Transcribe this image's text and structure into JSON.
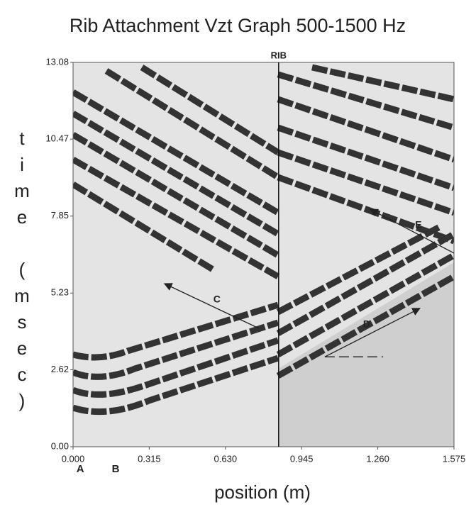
{
  "chart_data": {
    "type": "vzt",
    "title": "Rib Attachment Vzt Graph 500-1500 Hz",
    "x_label": "position (m)",
    "y_label": "time (msec)",
    "xlim": [
      0,
      1.575
    ],
    "ylim": [
      0,
      13.08
    ],
    "xticks": [
      {
        "value": 0,
        "label": "0.000"
      },
      0.315,
      {
        "value": 0.63,
        "label": "0.630"
      },
      0.945,
      {
        "value": 1.26,
        "label": "1.260"
      },
      1.575
    ],
    "yticks": [
      {
        "value": 0,
        "label": "0.00"
      },
      2.62,
      5.23,
      7.85,
      10.47,
      13.08
    ],
    "rib": {
      "label": "RIB",
      "position": 0.85
    },
    "position_labels": [
      {
        "label": "A",
        "x": 0.03
      },
      {
        "label": "B",
        "x": 0.176
      }
    ],
    "annotations": [
      {
        "label": "C",
        "label_at": [
          0.595,
          5.0
        ],
        "from": [
          0.768,
          4.03
        ],
        "to": [
          0.378,
          5.55
        ]
      },
      {
        "label": "D",
        "label_at": [
          1.214,
          4.15
        ],
        "from": [
          1.041,
          3.06
        ],
        "to": [
          1.434,
          4.71
        ],
        "dashed_to": 1.282
      },
      {
        "label": "E",
        "label_at": [
          1.428,
          7.53
        ],
        "from": [
          1.575,
          6.59
        ],
        "to": [
          1.229,
          8.08
        ]
      }
    ]
  }
}
